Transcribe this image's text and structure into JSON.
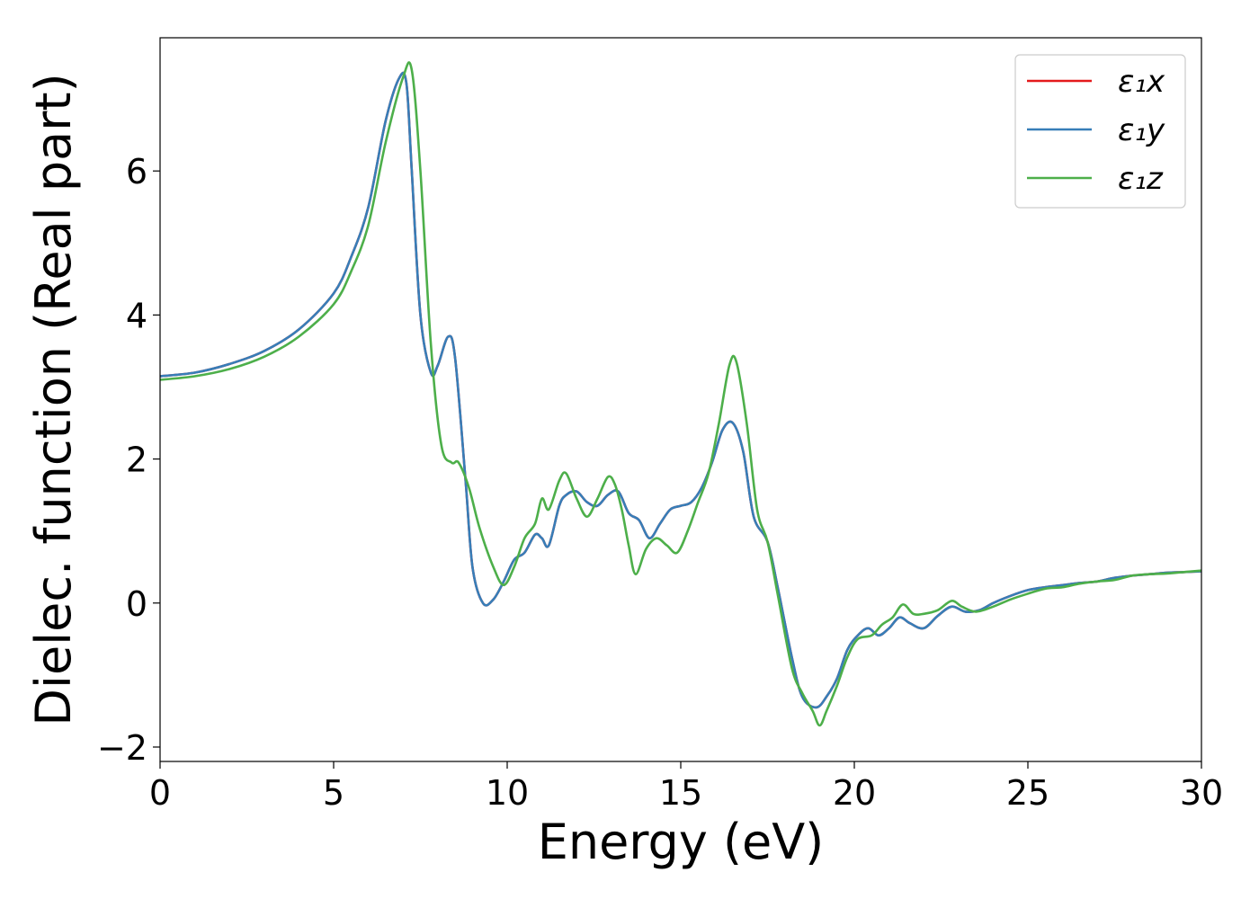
{
  "chart_data": {
    "type": "line",
    "xlabel": "Energy (eV)",
    "ylabel": "Dielec. function (Real part)",
    "xlim": [
      0,
      30
    ],
    "ylim": [
      -2.2,
      7.85
    ],
    "xticks": [
      0,
      5,
      10,
      15,
      20,
      25,
      30
    ],
    "xtick_labels": [
      "0",
      "5",
      "10",
      "15",
      "20",
      "25",
      "30"
    ],
    "yticks": [
      -2,
      0,
      2,
      4,
      6
    ],
    "ytick_labels": [
      "−2",
      "0",
      "2",
      "4",
      "6"
    ],
    "grid": false,
    "legend_position": "top-right",
    "series": [
      {
        "name": "ε₁x",
        "color": "#e41a1c",
        "x": [
          0,
          1,
          2,
          3,
          4,
          5,
          5.5,
          6,
          6.5,
          6.9,
          7.1,
          7.25,
          7.5,
          7.8,
          8.0,
          8.3,
          8.5,
          8.8,
          9.0,
          9.3,
          9.6,
          9.9,
          10.2,
          10.5,
          10.8,
          11.0,
          11.2,
          11.5,
          11.7,
          12.0,
          12.3,
          12.6,
          12.9,
          13.2,
          13.5,
          13.8,
          14.1,
          14.4,
          14.7,
          15.0,
          15.3,
          15.6,
          15.9,
          16.2,
          16.5,
          16.8,
          17.1,
          17.5,
          17.8,
          18.2,
          18.5,
          18.9,
          19.2,
          19.5,
          19.8,
          20.1,
          20.4,
          20.7,
          21.0,
          21.3,
          21.6,
          22.0,
          22.4,
          22.8,
          23.2,
          23.6,
          24.0,
          24.5,
          25.0,
          25.5,
          26.0,
          26.5,
          27.0,
          27.5,
          28.0,
          28.5,
          29.0,
          29.5,
          30.0
        ],
        "y": [
          3.15,
          3.2,
          3.32,
          3.5,
          3.8,
          4.3,
          4.8,
          5.5,
          6.7,
          7.3,
          7.2,
          6.0,
          4.0,
          3.2,
          3.3,
          3.7,
          3.4,
          1.7,
          0.5,
          0.0,
          0.05,
          0.3,
          0.6,
          0.7,
          0.95,
          0.9,
          0.8,
          1.35,
          1.5,
          1.55,
          1.4,
          1.35,
          1.5,
          1.55,
          1.25,
          1.15,
          0.9,
          1.1,
          1.3,
          1.35,
          1.4,
          1.6,
          1.95,
          2.4,
          2.5,
          2.1,
          1.2,
          0.85,
          0.2,
          -0.75,
          -1.3,
          -1.45,
          -1.3,
          -1.05,
          -0.65,
          -0.45,
          -0.35,
          -0.45,
          -0.35,
          -0.2,
          -0.28,
          -0.35,
          -0.18,
          -0.05,
          -0.12,
          -0.1,
          0.0,
          0.1,
          0.18,
          0.22,
          0.25,
          0.28,
          0.3,
          0.35,
          0.38,
          0.4,
          0.42,
          0.43,
          0.44
        ]
      },
      {
        "name": "ε₁y",
        "color": "#377eb8",
        "x": [
          0,
          1,
          2,
          3,
          4,
          5,
          5.5,
          6,
          6.5,
          6.9,
          7.1,
          7.25,
          7.5,
          7.8,
          8.0,
          8.3,
          8.5,
          8.8,
          9.0,
          9.3,
          9.6,
          9.9,
          10.2,
          10.5,
          10.8,
          11.0,
          11.2,
          11.5,
          11.7,
          12.0,
          12.3,
          12.6,
          12.9,
          13.2,
          13.5,
          13.8,
          14.1,
          14.4,
          14.7,
          15.0,
          15.3,
          15.6,
          15.9,
          16.2,
          16.5,
          16.8,
          17.1,
          17.5,
          17.8,
          18.2,
          18.5,
          18.9,
          19.2,
          19.5,
          19.8,
          20.1,
          20.4,
          20.7,
          21.0,
          21.3,
          21.6,
          22.0,
          22.4,
          22.8,
          23.2,
          23.6,
          24.0,
          24.5,
          25.0,
          25.5,
          26.0,
          26.5,
          27.0,
          27.5,
          28.0,
          28.5,
          29.0,
          29.5,
          30.0
        ],
        "y": [
          3.15,
          3.2,
          3.32,
          3.5,
          3.8,
          4.3,
          4.8,
          5.5,
          6.7,
          7.3,
          7.2,
          6.0,
          4.0,
          3.2,
          3.3,
          3.7,
          3.4,
          1.7,
          0.5,
          0.0,
          0.05,
          0.3,
          0.6,
          0.7,
          0.95,
          0.9,
          0.8,
          1.35,
          1.5,
          1.55,
          1.4,
          1.35,
          1.5,
          1.55,
          1.25,
          1.15,
          0.9,
          1.1,
          1.3,
          1.35,
          1.4,
          1.6,
          1.95,
          2.4,
          2.5,
          2.1,
          1.2,
          0.85,
          0.2,
          -0.75,
          -1.3,
          -1.45,
          -1.3,
          -1.05,
          -0.65,
          -0.45,
          -0.35,
          -0.45,
          -0.35,
          -0.2,
          -0.28,
          -0.35,
          -0.18,
          -0.05,
          -0.12,
          -0.1,
          0.0,
          0.1,
          0.18,
          0.22,
          0.25,
          0.28,
          0.3,
          0.35,
          0.38,
          0.4,
          0.42,
          0.43,
          0.44
        ]
      },
      {
        "name": "ε₁z",
        "color": "#4daf4a",
        "x": [
          0,
          1,
          2,
          3,
          4,
          5,
          5.5,
          6,
          6.5,
          7.0,
          7.25,
          7.5,
          7.8,
          8.1,
          8.4,
          8.6,
          8.9,
          9.2,
          9.6,
          9.9,
          10.2,
          10.5,
          10.8,
          11.0,
          11.2,
          11.5,
          11.7,
          12.0,
          12.3,
          12.6,
          12.9,
          13.1,
          13.3,
          13.5,
          13.7,
          14.0,
          14.3,
          14.6,
          14.9,
          15.2,
          15.5,
          15.8,
          16.1,
          16.4,
          16.6,
          16.9,
          17.2,
          17.5,
          17.8,
          18.2,
          18.5,
          18.8,
          19.0,
          19.2,
          19.5,
          19.8,
          20.1,
          20.5,
          20.8,
          21.1,
          21.4,
          21.7,
          22.0,
          22.4,
          22.8,
          23.1,
          23.5,
          24.0,
          24.5,
          25.0,
          25.5,
          26.0,
          26.5,
          27.0,
          27.5,
          28.0,
          28.5,
          29.0,
          29.5,
          30.0
        ],
        "y": [
          3.1,
          3.15,
          3.25,
          3.42,
          3.7,
          4.15,
          4.6,
          5.25,
          6.4,
          7.3,
          7.4,
          6.0,
          3.6,
          2.2,
          1.95,
          1.95,
          1.6,
          1.05,
          0.5,
          0.25,
          0.5,
          0.9,
          1.1,
          1.45,
          1.3,
          1.7,
          1.8,
          1.45,
          1.2,
          1.45,
          1.75,
          1.65,
          1.3,
          0.8,
          0.4,
          0.75,
          0.9,
          0.8,
          0.7,
          1.0,
          1.4,
          1.8,
          2.5,
          3.3,
          3.35,
          2.5,
          1.3,
          0.85,
          0.1,
          -0.9,
          -1.25,
          -1.5,
          -1.7,
          -1.5,
          -1.15,
          -0.75,
          -0.5,
          -0.45,
          -0.3,
          -0.2,
          -0.02,
          -0.15,
          -0.15,
          -0.1,
          0.03,
          -0.05,
          -0.12,
          -0.05,
          0.05,
          0.13,
          0.2,
          0.22,
          0.27,
          0.3,
          0.32,
          0.38,
          0.4,
          0.41,
          0.43,
          0.45
        ]
      }
    ]
  }
}
